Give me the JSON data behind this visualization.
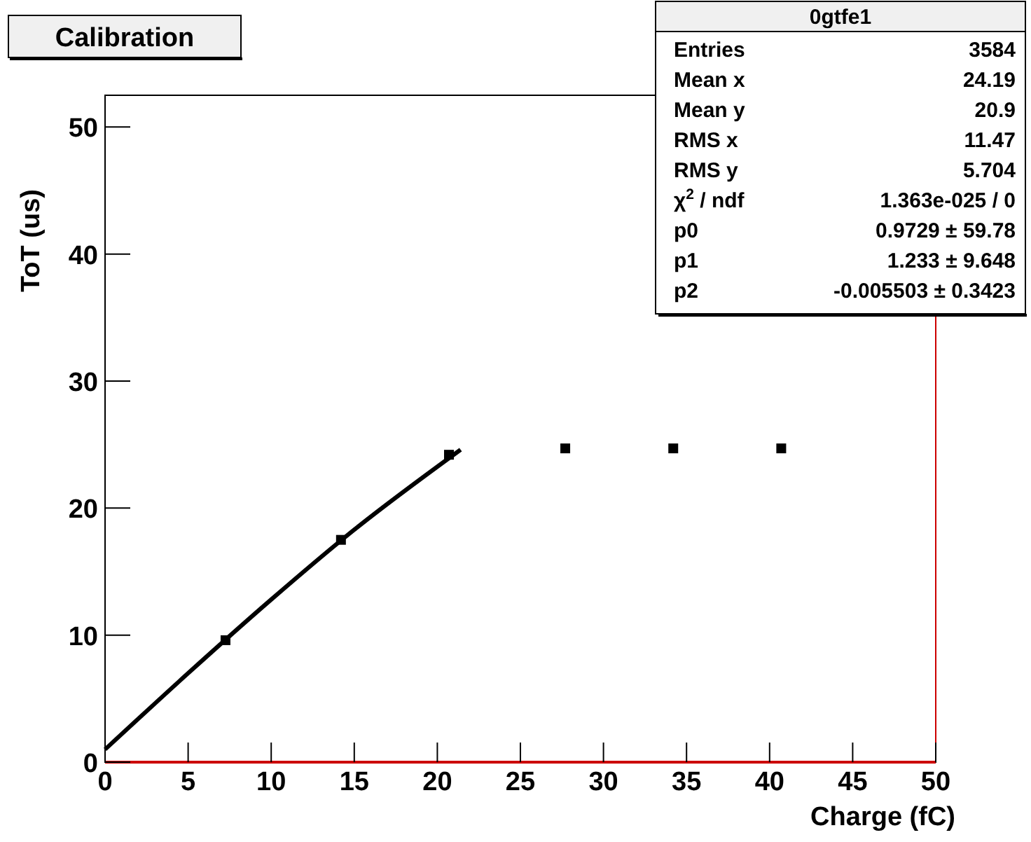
{
  "chart_data": {
    "type": "scatter",
    "title": "Calibration",
    "xlabel": "Charge (fC)",
    "ylabel": "ToT (us)",
    "xlim": [
      0,
      50
    ],
    "ylim": [
      0,
      52.5
    ],
    "xticks": [
      0,
      5,
      10,
      15,
      20,
      25,
      30,
      35,
      40,
      45,
      50
    ],
    "yticks": [
      0,
      10,
      20,
      30,
      40,
      50
    ],
    "grid": false,
    "marker": "square",
    "series": [
      {
        "color": "#000000",
        "x": [
          7.25,
          14.2,
          20.7,
          27.7,
          34.2,
          40.7
        ],
        "values": [
          9.6,
          17.5,
          24.2,
          24.7,
          24.7,
          24.7
        ]
      },
      {
        "type": "line",
        "color": "#000000",
        "marker": "none",
        "line_style": "solid",
        "x": [
          0,
          5,
          10,
          15,
          21.4
        ],
        "values": [
          1.0,
          7.0,
          12.8,
          18.3,
          24.6
        ]
      }
    ],
    "annotations": [
      "0gtfe1",
      "Entries",
      "3584",
      "Mean x",
      "24.19",
      "Mean y",
      "20.9",
      "RMS x",
      "11.47",
      "RMS y",
      "5.704",
      "χ$^{2}$ / ndf",
      "1.363e-025 / 0",
      "p0",
      "0.9729 ± 59.78",
      "p1",
      "1.233 ± 9.648",
      "p2",
      "-0.005503 ± 0.3423"
    ]
  }
}
